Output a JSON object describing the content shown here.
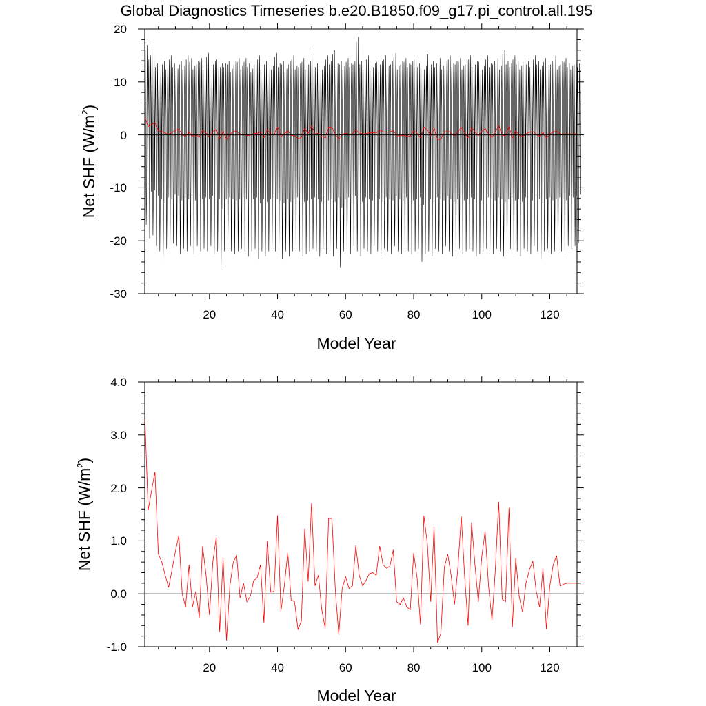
{
  "figure": {
    "title": "Global Diagnostics Timeseries b.e20.B1850.f09_g17.pi_control.all.195"
  },
  "chart_data": [
    {
      "type": "line",
      "title": "Global Diagnostics Timeseries b.e20.B1850.f09_g17.pi_control.all.195",
      "xlabel": "Model Year",
      "ylabel": "Net SHF (W/m²)",
      "ylabel_main": "Net SHF (W/m",
      "ylabel_sup": "2",
      "ylabel_close": ")",
      "xlim": [
        1,
        128
      ],
      "ylim": [
        -30,
        20
      ],
      "x_ticks": [
        20,
        40,
        60,
        80,
        100,
        120
      ],
      "y_ticks": [
        -30,
        -20,
        -10,
        0,
        10,
        20
      ],
      "x_tick_labels": [
        "20",
        "40",
        "60",
        "80",
        "100",
        "120"
      ],
      "y_tick_labels": [
        "-30",
        "-20",
        "-10",
        "0",
        "10",
        "20"
      ],
      "zero_line": 0,
      "grid": false,
      "series": [
        {
          "kind": "monthly",
          "color": "#000000",
          "annual_max_approx": [
            17,
            15,
            17.5,
            13.5,
            14.5,
            14,
            13,
            15,
            13.5,
            12.5,
            14,
            13,
            15,
            14.5,
            13,
            14,
            14.5,
            13,
            15.5,
            13,
            14,
            15,
            13.5,
            13.5,
            14,
            12.5,
            14,
            14.5,
            13,
            14.5,
            13.5,
            12.5,
            14,
            15,
            13,
            14,
            14.5,
            13,
            15.5,
            13.5,
            14,
            12.5,
            14,
            15,
            13,
            13.5,
            14.5,
            13,
            14,
            16.5,
            13.5,
            14,
            13,
            15,
            14,
            16,
            13.5,
            14,
            13,
            14.5,
            13.5,
            14,
            18.5,
            14,
            13,
            15,
            14,
            13.5,
            14.5,
            14,
            15,
            13,
            14,
            15.5,
            13,
            14,
            14.5,
            13.5,
            14,
            15,
            13.5,
            14,
            13,
            16,
            14,
            13.5,
            14.5,
            13,
            14,
            15,
            13.5,
            14,
            14.5,
            13,
            14,
            15,
            13.5,
            14,
            14.5,
            13,
            15,
            13.5,
            14,
            14.5,
            13,
            16,
            14,
            13.5,
            15,
            14,
            13,
            14.5,
            14,
            13.5,
            15,
            14,
            13,
            14.5,
            13.5,
            14,
            15,
            13,
            14,
            14.5,
            13.5,
            13,
            14,
            13.5
          ],
          "annual_min_approx": [
            -17,
            -19.5,
            -19,
            -21,
            -22,
            -23.5,
            -21.5,
            -22,
            -20.5,
            -21,
            -22.5,
            -21.5,
            -22,
            -21,
            -22.5,
            -21,
            -22,
            -21.5,
            -22,
            -21,
            -22.5,
            -22,
            -25.5,
            -22,
            -21.5,
            -22,
            -22.5,
            -22,
            -21.5,
            -22,
            -23,
            -22,
            -21.5,
            -23.5,
            -22,
            -23,
            -22,
            -21.5,
            -22,
            -22.5,
            -23.5,
            -22,
            -23,
            -22,
            -21.5,
            -22,
            -23,
            -22.5,
            -22,
            -21.5,
            -22,
            -23,
            -21.5,
            -22.5,
            -22,
            -23,
            -21.5,
            -25,
            -22,
            -21.5,
            -22.5,
            -21,
            -22,
            -23,
            -21.5,
            -22,
            -22.5,
            -21,
            -22,
            -23,
            -21.5,
            -22,
            -22.5,
            -21,
            -22,
            -22.5,
            -21.5,
            -22,
            -22.5,
            -22,
            -21.5,
            -24,
            -22.5,
            -22,
            -23,
            -21.5,
            -22,
            -22.5,
            -21,
            -22,
            -23,
            -22,
            -21.5,
            -22.5,
            -22,
            -21.5,
            -22,
            -23,
            -22.5,
            -22,
            -21.5,
            -22,
            -22.5,
            -21.5,
            -22,
            -23,
            -22,
            -21.5,
            -22.5,
            -22,
            -23,
            -21.5,
            -22,
            -22.5,
            -21,
            -22,
            -23.5,
            -22,
            -21.5,
            -22.5,
            -22,
            -21.5,
            -22,
            -22.5,
            -21,
            -21.5,
            -21,
            -20.5
          ]
        },
        {
          "kind": "annual",
          "color": "#ff0000",
          "ref": "annual_values"
        }
      ]
    },
    {
      "type": "line",
      "title": "",
      "xlabel": "Model Year",
      "ylabel": "Net SHF (W/m²)",
      "ylabel_main": "Net SHF (W/m",
      "ylabel_sup": "2",
      "ylabel_close": ")",
      "xlim": [
        1,
        128
      ],
      "ylim": [
        -1.0,
        4.0
      ],
      "x_ticks": [
        20,
        40,
        60,
        80,
        100,
        120
      ],
      "y_ticks": [
        -1.0,
        0.0,
        1.0,
        2.0,
        3.0,
        4.0
      ],
      "x_tick_labels": [
        "20",
        "40",
        "60",
        "80",
        "100",
        "120"
      ],
      "y_tick_labels": [
        "-1.0",
        "0.0",
        "1.0",
        "2.0",
        "3.0",
        "4.0"
      ],
      "zero_line": 0,
      "grid": false,
      "series": [
        {
          "kind": "annual",
          "color": "#ff0000",
          "ref": "annual_values"
        }
      ]
    }
  ],
  "annual_values": {
    "x": [
      1,
      2,
      3,
      4,
      5,
      6,
      7,
      8,
      9,
      10,
      11,
      12,
      13,
      14,
      15,
      16,
      17,
      18,
      19,
      20,
      21,
      22,
      23,
      24,
      25,
      26,
      27,
      28,
      29,
      30,
      31,
      32,
      33,
      34,
      35,
      36,
      37,
      38,
      39,
      40,
      41,
      42,
      43,
      44,
      45,
      46,
      47,
      48,
      49,
      50,
      51,
      52,
      53,
      54,
      55,
      56,
      57,
      58,
      59,
      60,
      61,
      62,
      63,
      64,
      65,
      66,
      67,
      68,
      69,
      70,
      71,
      72,
      73,
      74,
      75,
      76,
      77,
      78,
      79,
      80,
      81,
      82,
      83,
      84,
      85,
      86,
      87,
      88,
      89,
      90,
      91,
      92,
      93,
      94,
      95,
      96,
      97,
      98,
      99,
      100,
      101,
      102,
      103,
      104,
      105,
      106,
      107,
      108,
      109,
      110,
      111,
      112,
      113,
      114,
      115,
      116,
      117,
      118,
      119,
      120,
      121,
      122,
      123,
      124,
      125,
      126,
      127,
      128
    ],
    "y": [
      3.4,
      1.58,
      1.95,
      2.3,
      0.75,
      0.6,
      0.35,
      0.12,
      0.45,
      0.8,
      1.1,
      0.0,
      -0.25,
      0.55,
      -0.25,
      0.05,
      -0.45,
      0.9,
      0.35,
      -0.4,
      0.6,
      1.07,
      -0.72,
      0.68,
      -0.88,
      0.15,
      0.6,
      0.72,
      -0.08,
      0.2,
      -0.15,
      -0.05,
      0.25,
      0.3,
      0.55,
      -0.55,
      1.0,
      0.03,
      0.05,
      1.48,
      -0.33,
      0.15,
      0.78,
      -0.12,
      -0.15,
      -0.67,
      -0.52,
      1.23,
      0.23,
      1.71,
      0.15,
      0.35,
      -0.3,
      -0.65,
      1.42,
      1.42,
      0.05,
      -0.77,
      0.1,
      0.32,
      0.1,
      0.15,
      0.91,
      0.35,
      0.15,
      0.25,
      0.38,
      0.4,
      0.35,
      0.9,
      0.55,
      0.48,
      0.52,
      0.83,
      -0.15,
      -0.2,
      -0.08,
      -0.25,
      -0.3,
      0.77,
      0.3,
      -0.58,
      1.47,
      0.95,
      -0.15,
      1.27,
      -0.92,
      -0.75,
      0.5,
      0.75,
      0.35,
      -0.2,
      0.5,
      1.46,
      0.3,
      -0.6,
      1.35,
      0.55,
      -0.15,
      0.7,
      1.18,
      0.15,
      -0.5,
      0.45,
      1.74,
      -0.1,
      -0.15,
      1.62,
      -0.63,
      0.67,
      -0.05,
      -0.35,
      0.2,
      0.45,
      0.62,
      0.05,
      -0.25,
      0.48,
      -0.67,
      0.15,
      0.55,
      0.72,
      0.15,
      0.18,
      0.2,
      0.2,
      0.2,
      0.2
    ]
  }
}
